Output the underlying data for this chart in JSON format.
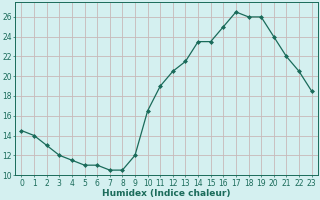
{
  "x": [
    0,
    1,
    2,
    3,
    4,
    5,
    6,
    7,
    8,
    9,
    10,
    11,
    12,
    13,
    14,
    15,
    16,
    17,
    18,
    19,
    20,
    21,
    22,
    23
  ],
  "y": [
    14.5,
    14.0,
    13.0,
    12.0,
    11.5,
    11.0,
    11.0,
    10.5,
    10.5,
    12.0,
    16.5,
    19.0,
    20.5,
    21.5,
    23.5,
    23.5,
    25.0,
    26.5,
    26.0,
    26.0,
    24.0,
    22.0,
    20.5,
    18.5
  ],
  "line_color": "#1a6b5a",
  "marker": "D",
  "marker_size": 2.0,
  "bg_color": "#d4f0f0",
  "grid_color": "#c8b8b8",
  "xlabel": "Humidex (Indice chaleur)",
  "xlim": [
    -0.5,
    23.5
  ],
  "ylim": [
    10,
    27.5
  ],
  "yticks": [
    10,
    12,
    14,
    16,
    18,
    20,
    22,
    24,
    26
  ],
  "xtick_labels": [
    "0",
    "1",
    "2",
    "3",
    "4",
    "5",
    "6",
    "7",
    "8",
    "9",
    "10",
    "11",
    "12",
    "13",
    "14",
    "15",
    "16",
    "17",
    "18",
    "19",
    "20",
    "21",
    "22",
    "23"
  ],
  "label_fontsize": 6.5,
  "tick_fontsize": 5.5
}
